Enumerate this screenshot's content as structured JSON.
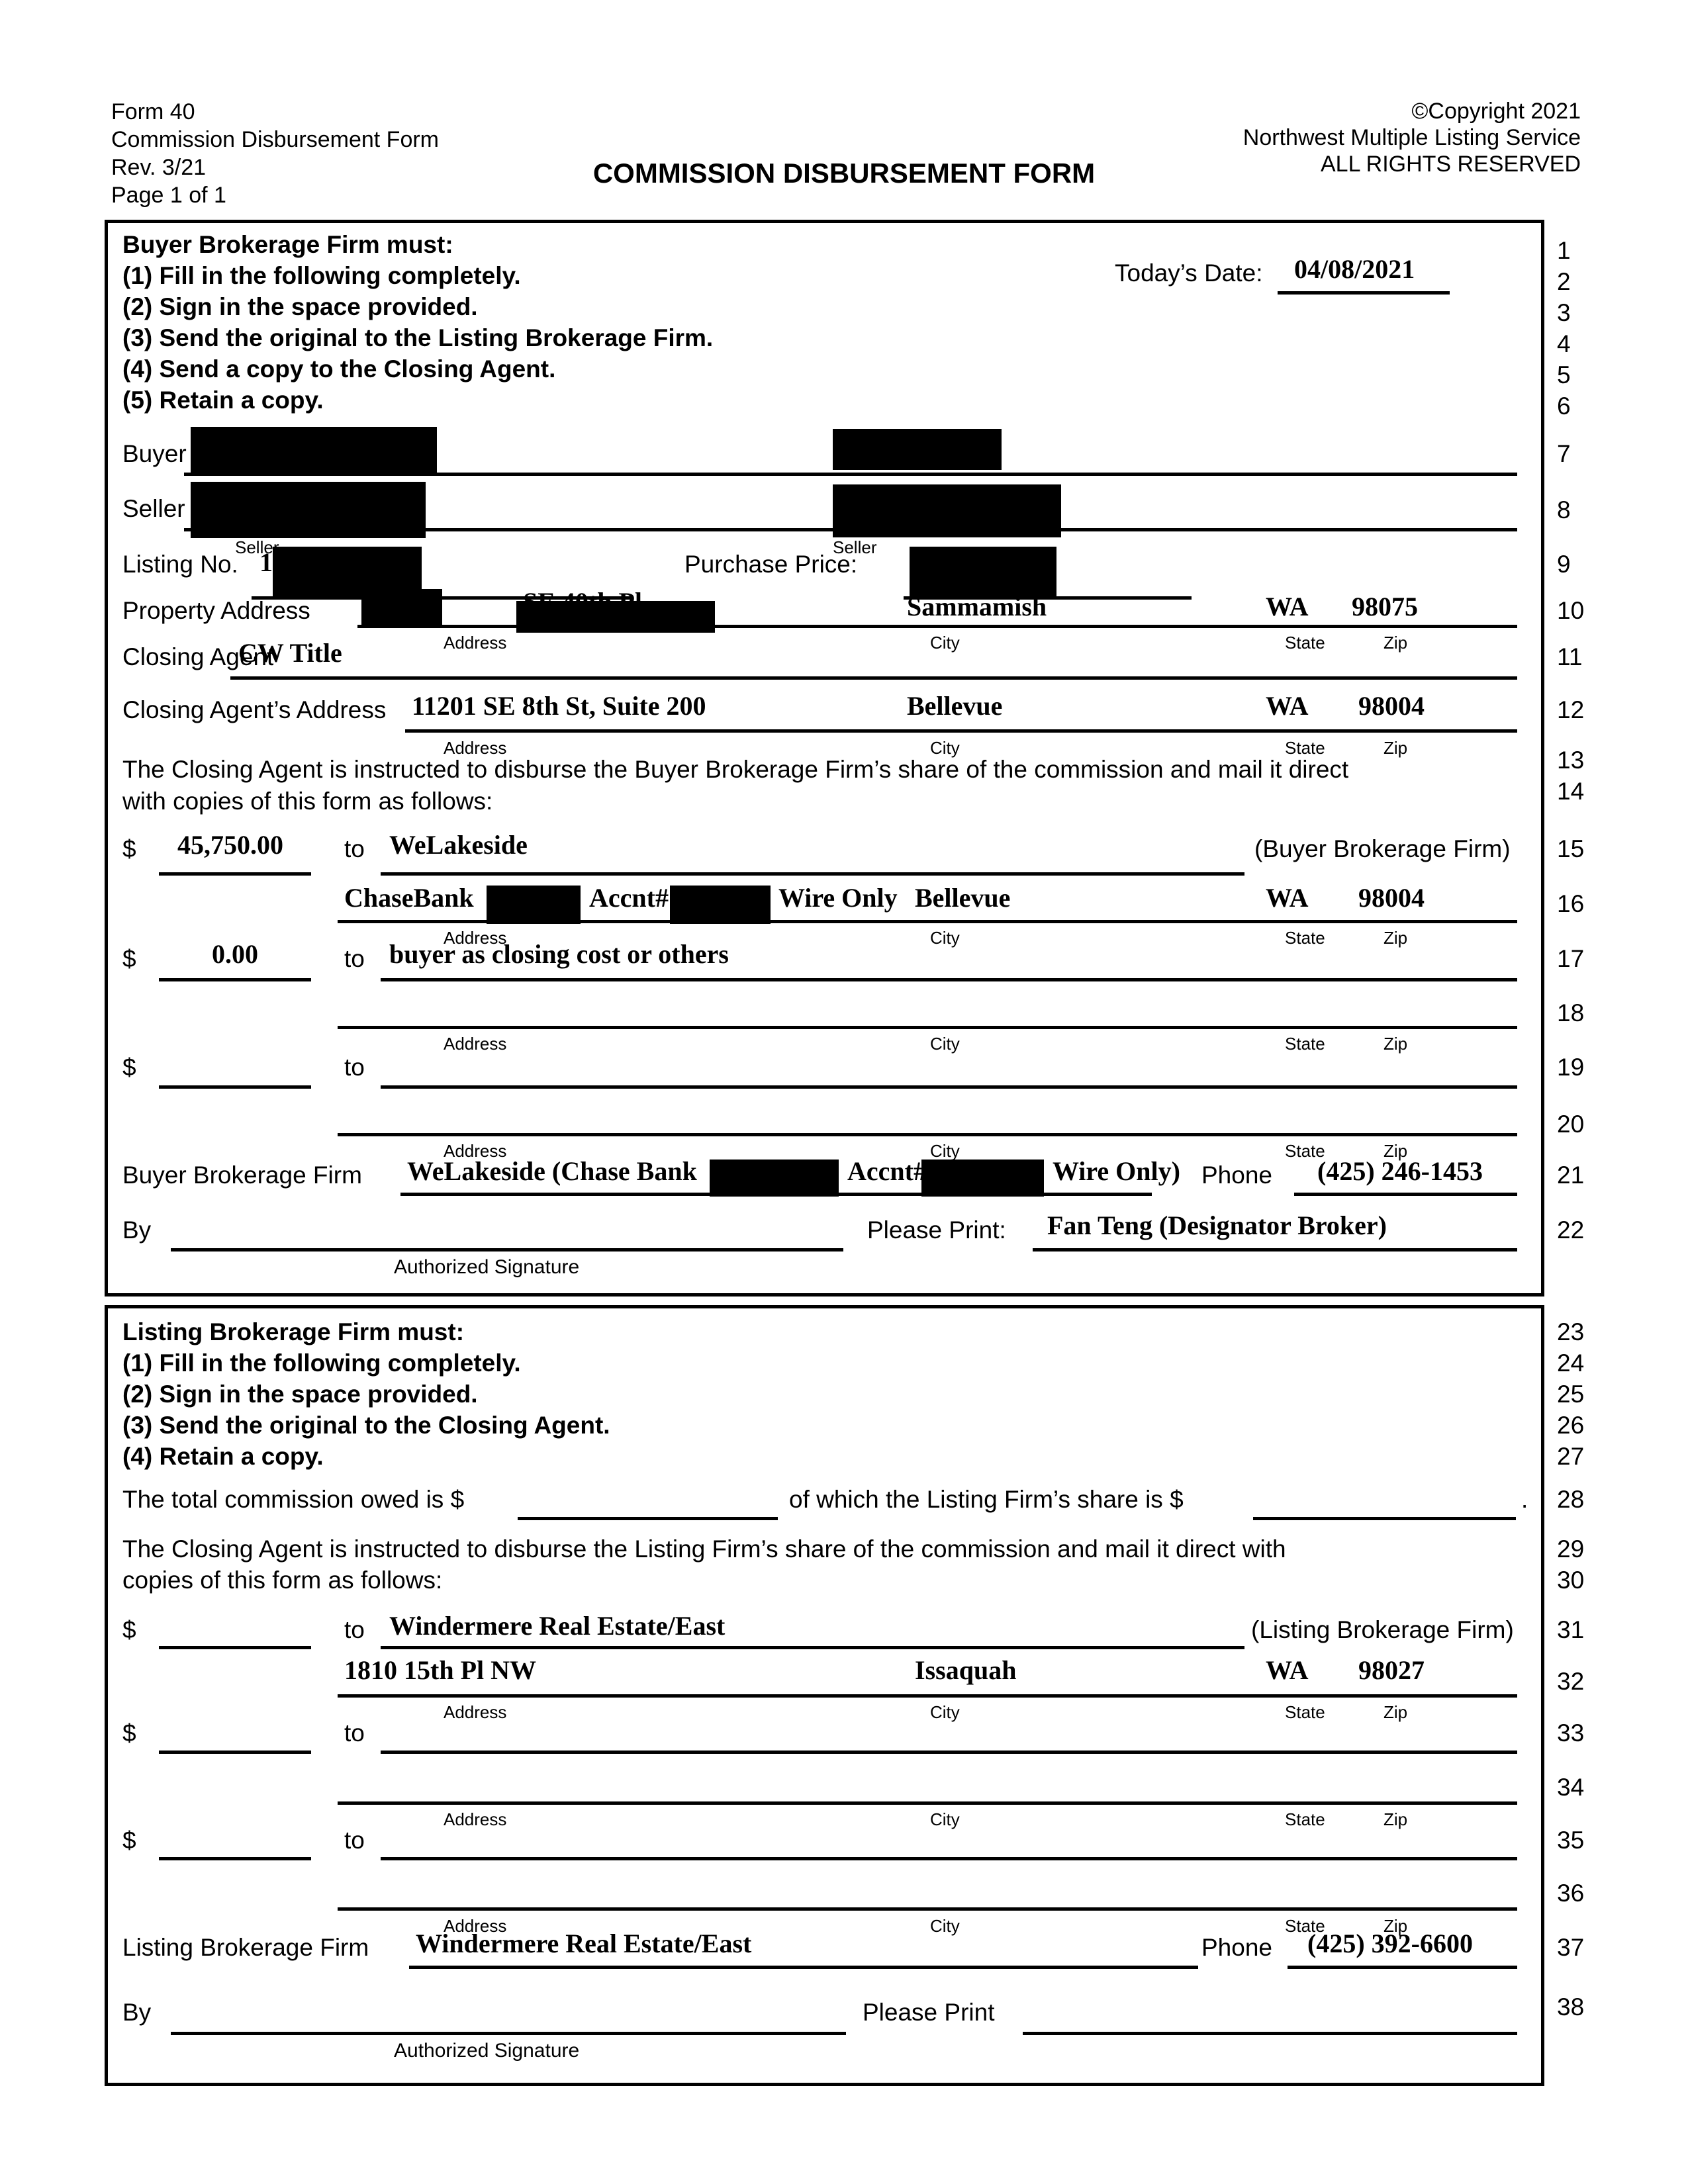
{
  "header": {
    "left": [
      "Form 40",
      "Commission Disbursement Form",
      "Rev. 3/21",
      "Page 1 of 1"
    ],
    "right": [
      "©Copyright 2021",
      "Northwest Multiple Listing Service",
      "ALL RIGHTS RESERVED"
    ],
    "title": "COMMISSION DISBURSEMENT FORM"
  },
  "labels": {
    "address": "Address",
    "city": "City",
    "state": "State",
    "zip": "Zip",
    "buyer": "Buyer",
    "seller": "Seller",
    "authorized_signature": "Authorized Signature",
    "phone": "Phone",
    "to": "to",
    "dollar": "$",
    "by": "By"
  },
  "buyer_section": {
    "heading": "Buyer Brokerage Firm must:",
    "instructions": [
      "(1)  Fill in the following completely.",
      "(2)  Sign in the space provided.",
      "(3)  Send the original to the Listing Brokerage Firm.",
      "(4)  Send a copy to the Closing Agent.",
      "(5)  Retain a copy."
    ],
    "todays_date_label": "Today’s Date:",
    "todays_date": "04/08/2021",
    "buyer_row_label": "Buyer",
    "seller_row_label": "Seller",
    "listing_no_label": "Listing No.",
    "listing_no_visible": "1",
    "purchase_price_label": "Purchase Price:",
    "property_address_label": "Property Address",
    "property_address_visible": "SE 40th Pl",
    "property_city": "Sammamish",
    "property_state": "WA",
    "property_zip": "98075",
    "closing_agent_label": "Closing Agent",
    "closing_agent": "CW Title",
    "closing_agent_address_label": "Closing Agent’s Address",
    "closing_agent_address": "11201 SE 8th St, Suite 200",
    "closing_agent_city": "Bellevue",
    "closing_agent_state": "WA",
    "closing_agent_zip": "98004",
    "instruction_paragraph_1": "The Closing Agent is instructed to disburse the Buyer Brokerage Firm’s share of the commission and mail it direct",
    "instruction_paragraph_2": "with copies of this form as follows:",
    "disbursement_1": {
      "amount": "45,750.00",
      "payee": "WeLakeside",
      "suffix": "(Buyer Brokerage Firm)",
      "address_pre": "ChaseBank",
      "address_mid": "Accnt#",
      "address_post": "Wire Only",
      "city": "Bellevue",
      "state": "WA",
      "zip": "98004"
    },
    "disbursement_2": {
      "amount": "0.00",
      "payee": "buyer as closing cost or others"
    },
    "firm_label": "Buyer Brokerage Firm",
    "firm_value_pre": "WeLakeside (Chase Bank",
    "firm_value_mid": "Accnt#",
    "firm_value_post": "Wire Only)",
    "phone": "(425) 246-1453",
    "please_print_label": "Please Print:",
    "please_print": "Fan Teng (Designator Broker)"
  },
  "listing_section": {
    "heading": "Listing Brokerage Firm must:",
    "instructions": [
      "(1)  Fill in the following completely.",
      "(2)  Sign in the space provided.",
      "(3)  Send the original to the Closing Agent.",
      "(4)  Retain a copy."
    ],
    "total_commission_pre": "The total commission owed is $",
    "total_commission_mid": "of which the Listing Firm’s share is $",
    "total_commission_end": ".",
    "instruction_paragraph_1": "The Closing Agent is instructed to disburse the Listing Firm’s share of the commission and mail it direct with",
    "instruction_paragraph_2": "copies of this form as follows:",
    "disbursement_1": {
      "payee": "Windermere Real Estate/East",
      "suffix": "(Listing Brokerage Firm)",
      "address": "1810 15th Pl NW",
      "city": "Issaquah",
      "state": "WA",
      "zip": "98027"
    },
    "firm_label": "Listing Brokerage Firm",
    "firm_value": "Windermere Real Estate/East",
    "phone": "(425) 392-6600",
    "please_print_label": "Please Print"
  },
  "line_numbers": [
    "1",
    "2",
    "3",
    "4",
    "5",
    "6",
    "7",
    "8",
    "9",
    "10",
    "11",
    "12",
    "13",
    "14",
    "15",
    "16",
    "17",
    "18",
    "19",
    "20",
    "21",
    "22",
    "23",
    "24",
    "25",
    "26",
    "27",
    "28",
    "29",
    "30",
    "31",
    "32",
    "33",
    "34",
    "35",
    "36",
    "37",
    "38"
  ]
}
